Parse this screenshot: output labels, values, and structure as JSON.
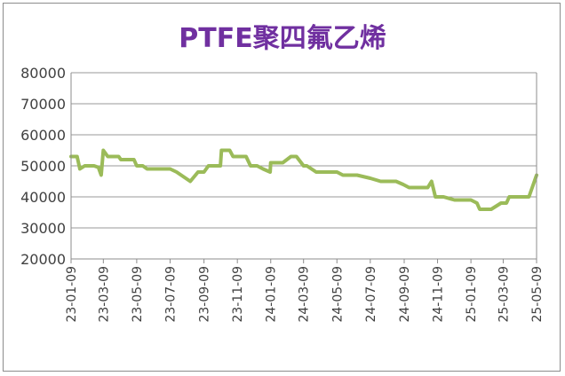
{
  "chart_data": {
    "type": "line",
    "title": "PTFE聚四氟乙烯",
    "xlabel": "",
    "ylabel": "",
    "ylim": [
      20000,
      80000
    ],
    "yticks": [
      20000,
      30000,
      40000,
      50000,
      60000,
      70000,
      80000
    ],
    "x_tick_labels": [
      "23-01-09",
      "23-03-09",
      "23-05-09",
      "23-07-09",
      "23-09-09",
      "23-11-09",
      "24-01-09",
      "24-03-09",
      "24-05-09",
      "24-07-09",
      "24-09-09",
      "24-11-09",
      "25-01-09",
      "25-03-09",
      "25-05-09"
    ],
    "grid": "horizontal",
    "legend": "none",
    "line_color": "#9bbb59",
    "series": [
      {
        "x": [
          "2023-01-09",
          "2023-01-20",
          "2023-01-25",
          "2023-02-03",
          "2023-02-20",
          "2023-02-28",
          "2023-03-05",
          "2023-03-09",
          "2023-03-17",
          "2023-03-21",
          "2023-04-06",
          "2023-04-10",
          "2023-05-04",
          "2023-05-09",
          "2023-05-20",
          "2023-05-28",
          "2023-06-15",
          "2023-07-09",
          "2023-07-21",
          "2023-08-15",
          "2023-08-29",
          "2023-09-09",
          "2023-09-17",
          "2023-09-22",
          "2023-10-09",
          "2023-10-11",
          "2023-10-26",
          "2023-11-01",
          "2023-11-25",
          "2023-12-03",
          "2023-12-15",
          "2023-12-26",
          "2024-01-08",
          "2024-01-09",
          "2024-01-31",
          "2024-02-15",
          "2024-02-25",
          "2024-03-09",
          "2024-03-15",
          "2024-04-01",
          "2024-05-09",
          "2024-05-20",
          "2024-06-15",
          "2024-07-09",
          "2024-07-28",
          "2024-08-25",
          "2024-09-07",
          "2024-09-18",
          "2024-10-22",
          "2024-10-29",
          "2024-11-05",
          "2024-11-20",
          "2024-12-10",
          "2025-01-09",
          "2025-01-20",
          "2025-01-25",
          "2025-02-15",
          "2025-03-05",
          "2025-03-15",
          "2025-03-20",
          "2025-04-25",
          "2025-05-09"
        ],
        "y": [
          53000,
          53000,
          49000,
          50000,
          50000,
          49500,
          47000,
          55000,
          53000,
          53000,
          53000,
          52000,
          52000,
          50000,
          50000,
          49000,
          49000,
          49000,
          48000,
          45000,
          48000,
          48000,
          50000,
          50000,
          50000,
          55000,
          55000,
          53000,
          53000,
          50000,
          50000,
          49000,
          48000,
          51000,
          51000,
          53000,
          53000,
          50000,
          50000,
          48000,
          48000,
          47000,
          47000,
          46000,
          45000,
          45000,
          44000,
          43000,
          43000,
          45000,
          40000,
          40000,
          39000,
          39000,
          38000,
          36000,
          36000,
          38000,
          38000,
          40000,
          40000,
          47000
        ]
      }
    ]
  }
}
